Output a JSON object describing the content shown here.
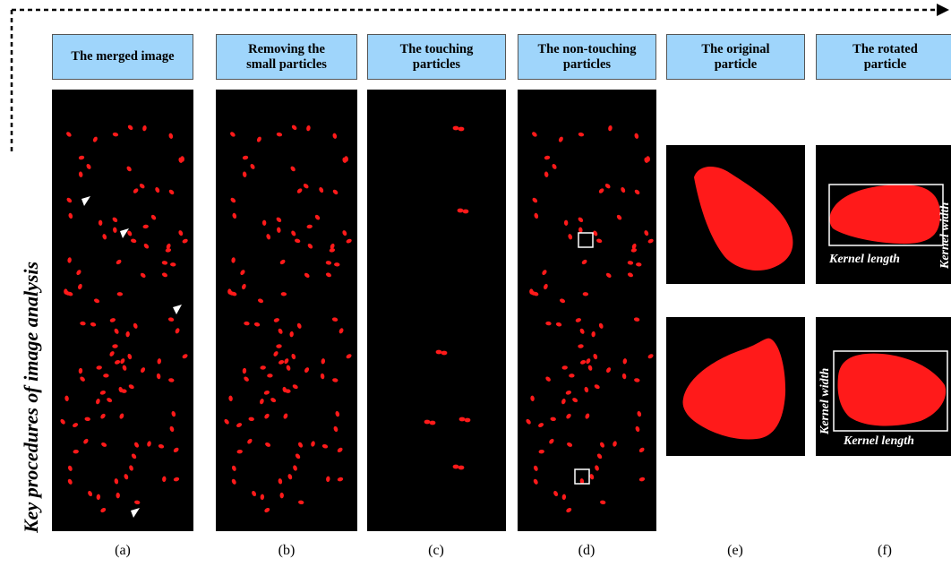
{
  "side_label": "Key procedures of image analysis",
  "headers": [
    "The merged image",
    "Removing the\nsmall particles",
    "The touching\nparticles",
    "The non-touching\nparticles",
    "The original\nparticle",
    "The rotated\nparticle"
  ],
  "captions": [
    "(a)",
    "(b)",
    "(c)",
    "(d)",
    "(e)",
    "(f)"
  ],
  "annotations": {
    "kernel_width": "Kernel width",
    "kernel_length": "Kernel length"
  },
  "colors": {
    "particle": "#ff1a1a",
    "panel_bg": "#000000",
    "header_bg": "#9fd5fb"
  }
}
